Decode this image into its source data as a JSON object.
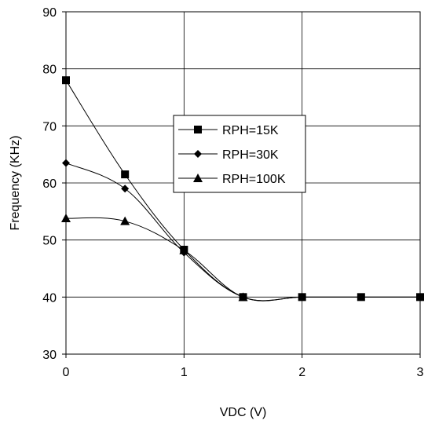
{
  "chart_data": {
    "type": "line",
    "title": "",
    "xlabel": "VDC (V)",
    "ylabel": "Frequency (KHz)",
    "xlim": [
      0,
      3
    ],
    "ylim": [
      30,
      90
    ],
    "xticks": [
      0,
      1,
      2,
      3
    ],
    "yticks": [
      30,
      40,
      50,
      60,
      70,
      80,
      90
    ],
    "grid": true,
    "legend_position": "center",
    "series": [
      {
        "name": "RPH=15K",
        "marker": "square",
        "x": [
          0,
          0.5,
          1,
          1.5,
          2,
          2.5,
          3
        ],
        "values": [
          78,
          61.5,
          48.3,
          40,
          40,
          40,
          40
        ]
      },
      {
        "name": "RPH=30K",
        "marker": "diamond",
        "x": [
          0,
          0.5,
          1,
          1.5,
          2,
          2.5,
          3
        ],
        "values": [
          63.5,
          59,
          47.8,
          40,
          40,
          40,
          40
        ]
      },
      {
        "name": "RPH=100K",
        "marker": "triangle",
        "x": [
          0,
          0.5,
          1,
          1.5,
          2,
          2.5,
          3
        ],
        "values": [
          53.8,
          53.3,
          48.2,
          40,
          40,
          40,
          40
        ]
      }
    ]
  }
}
